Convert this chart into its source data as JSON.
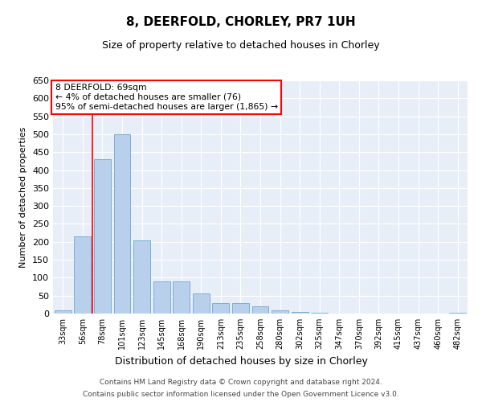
{
  "title": "8, DEERFOLD, CHORLEY, PR7 1UH",
  "subtitle": "Size of property relative to detached houses in Chorley",
  "xlabel": "Distribution of detached houses by size in Chorley",
  "ylabel": "Number of detached properties",
  "bar_color": "#b8d0eb",
  "bar_edge_color": "#7aafd4",
  "background_color": "#e8eef8",
  "categories": [
    "33sqm",
    "56sqm",
    "78sqm",
    "101sqm",
    "123sqm",
    "145sqm",
    "168sqm",
    "190sqm",
    "213sqm",
    "235sqm",
    "258sqm",
    "280sqm",
    "302sqm",
    "325sqm",
    "347sqm",
    "370sqm",
    "392sqm",
    "415sqm",
    "437sqm",
    "460sqm",
    "482sqm"
  ],
  "values": [
    10,
    215,
    430,
    500,
    205,
    90,
    90,
    55,
    30,
    30,
    20,
    10,
    4,
    2,
    1,
    1,
    1,
    1,
    1,
    1,
    2
  ],
  "ylim": [
    0,
    650
  ],
  "yticks": [
    0,
    50,
    100,
    150,
    200,
    250,
    300,
    350,
    400,
    450,
    500,
    550,
    600,
    650
  ],
  "annotation_text": "8 DEERFOLD: 69sqm\n← 4% of detached houses are smaller (76)\n95% of semi-detached houses are larger (1,865) →",
  "red_line_x": 1.5,
  "footer_line1": "Contains HM Land Registry data © Crown copyright and database right 2024.",
  "footer_line2": "Contains public sector information licensed under the Open Government Licence v3.0."
}
